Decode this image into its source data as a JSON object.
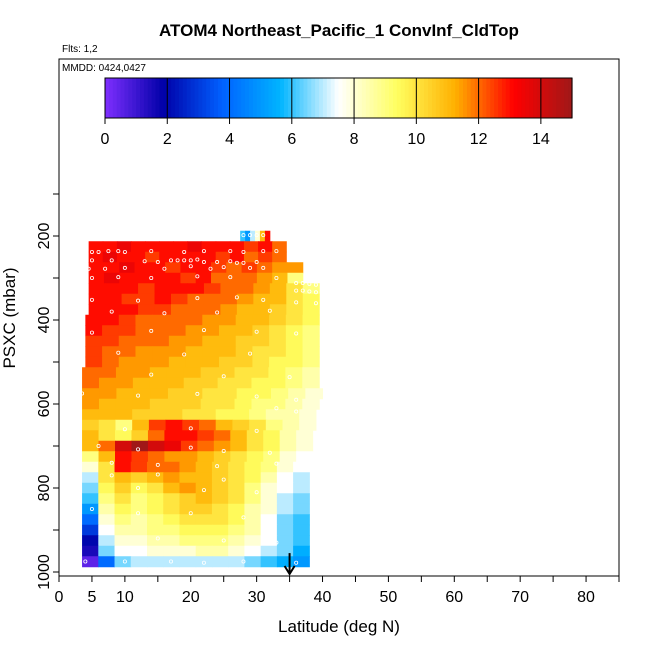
{
  "chart_data": {
    "type": "heatmap",
    "title": "ATOM4 Northeast_Pacific_1 ConvInf_CldTop",
    "flights_label": "Flts: 1,2",
    "dates_label": "MMDD: 0424,0427",
    "xlabel": "Latitude (deg N)",
    "ylabel": "PSXC (mbar)",
    "xlim": [
      0,
      85
    ],
    "ylim": [
      1000,
      0
    ],
    "x_ticks": [
      0,
      5,
      10,
      20,
      30,
      40,
      50,
      60,
      70,
      80
    ],
    "y_ticks": [
      200,
      400,
      600,
      800,
      1000
    ],
    "colorbar": {
      "range": [
        0,
        15
      ],
      "ticks": [
        0,
        2,
        4,
        6,
        8,
        10,
        12,
        14
      ],
      "colors": [
        "#7f2fff",
        "#0000a8",
        "#0060ff",
        "#00b4ff",
        "#ffffff",
        "#ffff60",
        "#ffb000",
        "#ff0000",
        "#a01818"
      ]
    },
    "levels": [
      {
        "p": 200,
        "lat_min": 27.5,
        "lat_max": 32,
        "values": [
          6,
          5,
          7,
          8,
          11,
          13
        ]
      },
      {
        "p": 225,
        "lat_min": 4.5,
        "lat_max": 34.5,
        "values": [
          13,
          13,
          13.5,
          13,
          13,
          13,
          13,
          13.5,
          13,
          13,
          13,
          12.5,
          13,
          12
        ]
      },
      {
        "p": 250,
        "lat_min": 4.5,
        "lat_max": 34.5,
        "values": [
          13,
          13.5,
          13,
          13,
          12.5,
          13,
          13,
          13,
          13,
          12.5,
          13,
          12,
          12.5,
          12
        ]
      },
      {
        "p": 275,
        "lat_min": 4.5,
        "lat_max": 37,
        "values": [
          13,
          13,
          13.5,
          13,
          13,
          12.5,
          13,
          13,
          12.5,
          12,
          12.5,
          12,
          11.5,
          11.5
        ]
      },
      {
        "p": 300,
        "lat_min": 4.5,
        "lat_max": 37,
        "values": [
          13,
          13.5,
          13,
          13,
          13,
          13,
          12.5,
          13,
          12,
          12,
          12,
          11.5,
          11,
          9
        ]
      },
      {
        "p": 325,
        "lat_min": 4.5,
        "lat_max": 39.5,
        "values": [
          13,
          13,
          13,
          12.5,
          13,
          13,
          13,
          12.5,
          12,
          12,
          11.5,
          11,
          10,
          9
        ]
      },
      {
        "p": 350,
        "lat_min": 4.5,
        "lat_max": 39.5,
        "values": [
          13,
          13,
          12.5,
          12.5,
          13,
          12.5,
          12,
          12,
          12,
          11.5,
          11,
          11,
          10,
          9.5
        ]
      },
      {
        "p": 375,
        "lat_min": 4.5,
        "lat_max": 39.5,
        "values": [
          13,
          13,
          13,
          12.5,
          12.5,
          12,
          12,
          12,
          11.5,
          11,
          11,
          10.5,
          10,
          9.5
        ]
      },
      {
        "p": 400,
        "lat_min": 4,
        "lat_max": 39.5,
        "values": [
          13,
          13,
          12.5,
          12,
          12,
          12,
          12,
          11.5,
          11.5,
          11,
          11,
          10.5,
          10,
          9.5
        ]
      },
      {
        "p": 425,
        "lat_min": 4,
        "lat_max": 39.5,
        "values": [
          13,
          12.5,
          12.5,
          12,
          12,
          12,
          11.5,
          11.5,
          11,
          11,
          10.5,
          10,
          9.5,
          9
        ]
      },
      {
        "p": 450,
        "lat_min": 4,
        "lat_max": 39.5,
        "values": [
          12.5,
          12.5,
          12,
          12,
          12,
          11.5,
          11.5,
          11,
          11,
          10.5,
          10.5,
          10,
          9.5,
          9
        ]
      },
      {
        "p": 475,
        "lat_min": 4,
        "lat_max": 39.5,
        "values": [
          12.5,
          12,
          12,
          11.5,
          11.5,
          11.5,
          11,
          11,
          11,
          10.5,
          10,
          10,
          9.5,
          9
        ]
      },
      {
        "p": 500,
        "lat_min": 4,
        "lat_max": 39.5,
        "values": [
          12.5,
          12,
          11.5,
          11.5,
          11.5,
          11,
          11,
          11,
          10.5,
          10.5,
          10,
          9.5,
          9.5,
          9
        ]
      },
      {
        "p": 525,
        "lat_min": 3.5,
        "lat_max": 39.5,
        "values": [
          12,
          12,
          11.5,
          11.5,
          11,
          11,
          11,
          10.5,
          10.5,
          10,
          10,
          9.5,
          9,
          8.5
        ]
      },
      {
        "p": 550,
        "lat_min": 3.5,
        "lat_max": 39.5,
        "values": [
          12,
          11.5,
          11.5,
          11,
          11,
          11,
          10.5,
          10.5,
          10,
          10,
          9.5,
          9.5,
          9,
          8.5
        ]
      },
      {
        "p": 575,
        "lat_min": 3.5,
        "lat_max": 40,
        "values": [
          11.5,
          11.5,
          11,
          11,
          11,
          10.5,
          10.5,
          10,
          10,
          9.5,
          9.5,
          9,
          8.5,
          8
        ]
      },
      {
        "p": 600,
        "lat_min": 3.5,
        "lat_max": 39.5,
        "values": [
          11.5,
          11,
          11,
          11,
          10.5,
          10.5,
          10.5,
          10,
          10,
          9.5,
          9,
          9,
          8.5,
          8
        ]
      },
      {
        "p": 625,
        "lat_min": 3.5,
        "lat_max": 39,
        "values": [
          11,
          11,
          11,
          10.5,
          10.5,
          10.5,
          10,
          10,
          9.5,
          9.5,
          9,
          8.5,
          8.5,
          8
        ]
      },
      {
        "p": 650,
        "lat_min": 3.5,
        "lat_max": 39,
        "values": [
          10.5,
          10,
          9,
          11,
          12.5,
          13,
          12.5,
          12,
          11,
          10.5,
          10,
          9,
          8.5,
          8
        ]
      },
      {
        "p": 675,
        "lat_min": 3.5,
        "lat_max": 38.5,
        "values": [
          11,
          10,
          9.5,
          10.5,
          12,
          13,
          13,
          12.5,
          12,
          11,
          10,
          9.5,
          8.5,
          8
        ]
      },
      {
        "p": 700,
        "lat_min": 3.5,
        "lat_max": 38.5,
        "values": [
          11,
          12,
          14,
          15,
          14,
          13.5,
          12.5,
          12,
          11.5,
          11,
          10,
          9.5,
          8.5,
          8
        ]
      },
      {
        "p": 725,
        "lat_min": 3.5,
        "lat_max": 38.5,
        "values": [
          9,
          11,
          13,
          12.5,
          12,
          11.5,
          11.5,
          11,
          10.5,
          10,
          9.5,
          9,
          8,
          7.5
        ]
      },
      {
        "p": 750,
        "lat_min": 3.5,
        "lat_max": 38,
        "values": [
          8,
          10,
          13,
          12.5,
          12,
          12,
          11.5,
          11,
          10.5,
          10,
          9.5,
          9,
          8,
          7.5
        ]
      },
      {
        "p": 775,
        "lat_min": 3.5,
        "lat_max": 38,
        "values": [
          7,
          10,
          11,
          10.5,
          11,
          11.5,
          11,
          11,
          10.5,
          10,
          9.5,
          8.5,
          7.5,
          7
        ]
      },
      {
        "p": 800,
        "lat_min": 3.5,
        "lat_max": 38,
        "values": [
          6.5,
          9.5,
          10.5,
          9.5,
          10,
          11,
          11.5,
          11,
          10.5,
          10,
          9,
          8,
          7.5,
          7
        ]
      },
      {
        "p": 825,
        "lat_min": 3.5,
        "lat_max": 38,
        "values": [
          6,
          9,
          10,
          9,
          9.5,
          10,
          10.5,
          11,
          10.5,
          10,
          9,
          8,
          7,
          6.5
        ]
      },
      {
        "p": 850,
        "lat_min": 3.5,
        "lat_max": 38,
        "values": [
          5,
          8.5,
          9.5,
          9,
          9.5,
          10,
          10.5,
          10.5,
          10,
          9.5,
          8.5,
          8,
          7,
          6.5
        ]
      },
      {
        "p": 875,
        "lat_min": 3.5,
        "lat_max": 38,
        "values": [
          4,
          8,
          9,
          8.5,
          9,
          9.5,
          10,
          10,
          10,
          9.5,
          8.5,
          7.5,
          6.5,
          6
        ]
      },
      {
        "p": 900,
        "lat_min": 3.5,
        "lat_max": 38,
        "values": [
          3,
          7.5,
          8.5,
          8.5,
          9,
          9,
          9.5,
          9.5,
          9.5,
          9,
          8.5,
          7.5,
          6.5,
          6
        ]
      },
      {
        "p": 925,
        "lat_min": 3.5,
        "lat_max": 38,
        "values": [
          2,
          7,
          8,
          8,
          8.5,
          8.5,
          9,
          9,
          9,
          8.5,
          8,
          7.5,
          6.5,
          6
        ]
      },
      {
        "p": 950,
        "lat_min": 3.5,
        "lat_max": 38,
        "values": [
          1.5,
          6.5,
          7.5,
          7.5,
          8,
          8,
          8,
          8.5,
          8.5,
          8,
          7.5,
          7,
          6.5,
          5.5
        ]
      },
      {
        "p": 975,
        "lat_min": 3.5,
        "lat_max": 38,
        "values": [
          0.5,
          4,
          6.5,
          7,
          7,
          7,
          7,
          7,
          7,
          7,
          6.5,
          6,
          5.5,
          5
        ]
      }
    ],
    "sample_points": [
      [
        28,
        198
      ],
      [
        29,
        198
      ],
      [
        30,
        198
      ],
      [
        31,
        198
      ],
      [
        5,
        238
      ],
      [
        6,
        238
      ],
      [
        7.5,
        236
      ],
      [
        9,
        236
      ],
      [
        10,
        238
      ],
      [
        14,
        236
      ],
      [
        19,
        238
      ],
      [
        22,
        236
      ],
      [
        26,
        236
      ],
      [
        28,
        238
      ],
      [
        31,
        236
      ],
      [
        33,
        236
      ],
      [
        5,
        258
      ],
      [
        8,
        258
      ],
      [
        13,
        260
      ],
      [
        15,
        262
      ],
      [
        17,
        258
      ],
      [
        18,
        258
      ],
      [
        19,
        258
      ],
      [
        20,
        258
      ],
      [
        21,
        256
      ],
      [
        22,
        262
      ],
      [
        24,
        262
      ],
      [
        26,
        260
      ],
      [
        27,
        264
      ],
      [
        28,
        264
      ],
      [
        30,
        262
      ],
      [
        4.5,
        278
      ],
      [
        7,
        278
      ],
      [
        10,
        276
      ],
      [
        16,
        278
      ],
      [
        20,
        272
      ],
      [
        23,
        278
      ],
      [
        25,
        274
      ],
      [
        29,
        276
      ],
      [
        31,
        276
      ],
      [
        5,
        300
      ],
      [
        9,
        298
      ],
      [
        14,
        300
      ],
      [
        21,
        296
      ],
      [
        26,
        298
      ],
      [
        33,
        300
      ],
      [
        36,
        312
      ],
      [
        37,
        312
      ],
      [
        38,
        314
      ],
      [
        39,
        316
      ],
      [
        36,
        330
      ],
      [
        37,
        330
      ],
      [
        38,
        332
      ],
      [
        39,
        334
      ],
      [
        5,
        352
      ],
      [
        12,
        354
      ],
      [
        21,
        348
      ],
      [
        27,
        346
      ],
      [
        31,
        352
      ],
      [
        36,
        358
      ],
      [
        39,
        360
      ],
      [
        8,
        380
      ],
      [
        16,
        384
      ],
      [
        24,
        382
      ],
      [
        32,
        378
      ],
      [
        5,
        430
      ],
      [
        14,
        426
      ],
      [
        22,
        424
      ],
      [
        30,
        428
      ],
      [
        36,
        432
      ],
      [
        9,
        478
      ],
      [
        19,
        482
      ],
      [
        29,
        480
      ],
      [
        14,
        530
      ],
      [
        25,
        534
      ],
      [
        35,
        536
      ],
      [
        3.5,
        575
      ],
      [
        12,
        580
      ],
      [
        21,
        576
      ],
      [
        30,
        582
      ],
      [
        36,
        590
      ],
      [
        33,
        610
      ],
      [
        36,
        618
      ],
      [
        10,
        660
      ],
      [
        20,
        658
      ],
      [
        30,
        664
      ],
      [
        6,
        700
      ],
      [
        12,
        708
      ],
      [
        20,
        704
      ],
      [
        25,
        712
      ],
      [
        32,
        716
      ],
      [
        8,
        740
      ],
      [
        15,
        745
      ],
      [
        24,
        748
      ],
      [
        33,
        742
      ],
      [
        8,
        770
      ],
      [
        15,
        768
      ],
      [
        25,
        780
      ],
      [
        35,
        790
      ],
      [
        12,
        800
      ],
      [
        22,
        805
      ],
      [
        30,
        810
      ],
      [
        5,
        850
      ],
      [
        12,
        860
      ],
      [
        20,
        860
      ],
      [
        28,
        870
      ],
      [
        15,
        920
      ],
      [
        25,
        925
      ],
      [
        33,
        930
      ],
      [
        4,
        975
      ],
      [
        10,
        975
      ],
      [
        17,
        975
      ],
      [
        22,
        978
      ],
      [
        28,
        975
      ],
      [
        36,
        978
      ]
    ],
    "marker": {
      "lat": 35,
      "label": "arrow"
    },
    "grid": false,
    "legend": "colorbar-top"
  }
}
